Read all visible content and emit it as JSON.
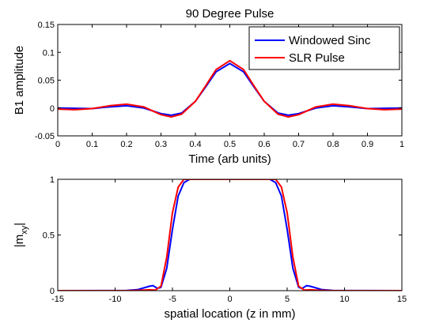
{
  "chart_data": [
    {
      "type": "line",
      "title": "90 Degree Pulse",
      "xlabel": "Time (arb units)",
      "ylabel": "B1 amplitude",
      "xlim": [
        0,
        1
      ],
      "ylim": [
        -0.05,
        0.15
      ],
      "xticks": [
        "0",
        "0.1",
        "0.2",
        "0.3",
        "0.4",
        "0.5",
        "0.6",
        "0.7",
        "0.8",
        "0.9",
        "1"
      ],
      "yticks": [
        "-0.05",
        "0",
        "0.05",
        "0.1",
        "0.15"
      ],
      "legend": "top-right",
      "grid": false,
      "series": [
        {
          "name": "Windowed Sinc",
          "color": "#0000ff",
          "x": [
            0,
            0.05,
            0.1,
            0.15,
            0.2,
            0.25,
            0.3,
            0.33,
            0.36,
            0.4,
            0.43,
            0.46,
            0.5,
            0.54,
            0.57,
            0.6,
            0.64,
            0.67,
            0.7,
            0.75,
            0.8,
            0.85,
            0.9,
            0.95,
            1
          ],
          "y": [
            0,
            -0.0005,
            -0.001,
            0.002,
            0.004,
            0.0,
            -0.01,
            -0.013,
            -0.009,
            0.012,
            0.038,
            0.065,
            0.08,
            0.065,
            0.038,
            0.012,
            -0.009,
            -0.013,
            -0.01,
            0.0,
            0.004,
            0.002,
            -0.001,
            -0.0005,
            0
          ]
        },
        {
          "name": "SLR Pulse",
          "color": "#ff0000",
          "x": [
            0,
            0.05,
            0.1,
            0.15,
            0.2,
            0.25,
            0.3,
            0.33,
            0.36,
            0.4,
            0.43,
            0.46,
            0.5,
            0.54,
            0.57,
            0.6,
            0.64,
            0.67,
            0.7,
            0.75,
            0.8,
            0.85,
            0.9,
            0.95,
            1
          ],
          "y": [
            -0.002,
            -0.003,
            -0.001,
            0.004,
            0.007,
            0.002,
            -0.012,
            -0.016,
            -0.011,
            0.012,
            0.04,
            0.069,
            0.085,
            0.069,
            0.04,
            0.012,
            -0.011,
            -0.016,
            -0.012,
            0.002,
            0.007,
            0.004,
            -0.001,
            -0.003,
            -0.002
          ]
        }
      ]
    },
    {
      "type": "line",
      "title": "",
      "xlabel": "spatial location (z in mm)",
      "ylabel": "|mxy|",
      "xlim": [
        -15,
        15
      ],
      "ylim": [
        0,
        1
      ],
      "xticks": [
        "-15",
        "-10",
        "-5",
        "0",
        "5",
        "10",
        "15"
      ],
      "yticks": [
        "0",
        "0.5",
        "1"
      ],
      "grid": false,
      "series": [
        {
          "name": "Windowed Sinc",
          "color": "#0000ff",
          "x": [
            -15,
            -9,
            -8,
            -7,
            -6.7,
            -6.3,
            -6,
            -5.5,
            -5,
            -4.5,
            -4,
            -3.5,
            -3,
            3,
            3.5,
            4,
            4.5,
            5,
            5.5,
            6,
            6.3,
            6.7,
            7,
            8,
            9,
            15
          ],
          "y": [
            0,
            0.002,
            0.01,
            0.04,
            0.045,
            0.02,
            0.03,
            0.2,
            0.55,
            0.85,
            0.97,
            1.0,
            1.0,
            1.0,
            1.0,
            0.97,
            0.85,
            0.55,
            0.2,
            0.03,
            0.02,
            0.045,
            0.04,
            0.01,
            0.002,
            0
          ]
        },
        {
          "name": "SLR Pulse",
          "color": "#ff0000",
          "x": [
            -15,
            -9,
            -8,
            -7,
            -6.5,
            -6,
            -5.5,
            -5,
            -4.5,
            -4,
            -3.6,
            -3.2,
            3.2,
            3.6,
            4,
            4.5,
            5,
            5.5,
            6,
            6.5,
            7,
            8,
            9,
            15
          ],
          "y": [
            0,
            0.0,
            0.003,
            0.008,
            0.005,
            0.04,
            0.3,
            0.7,
            0.93,
            1.0,
            1.0,
            1.0,
            1.0,
            1.0,
            1.0,
            0.93,
            0.7,
            0.3,
            0.04,
            0.005,
            0.008,
            0.003,
            0.0,
            0
          ]
        }
      ]
    }
  ]
}
